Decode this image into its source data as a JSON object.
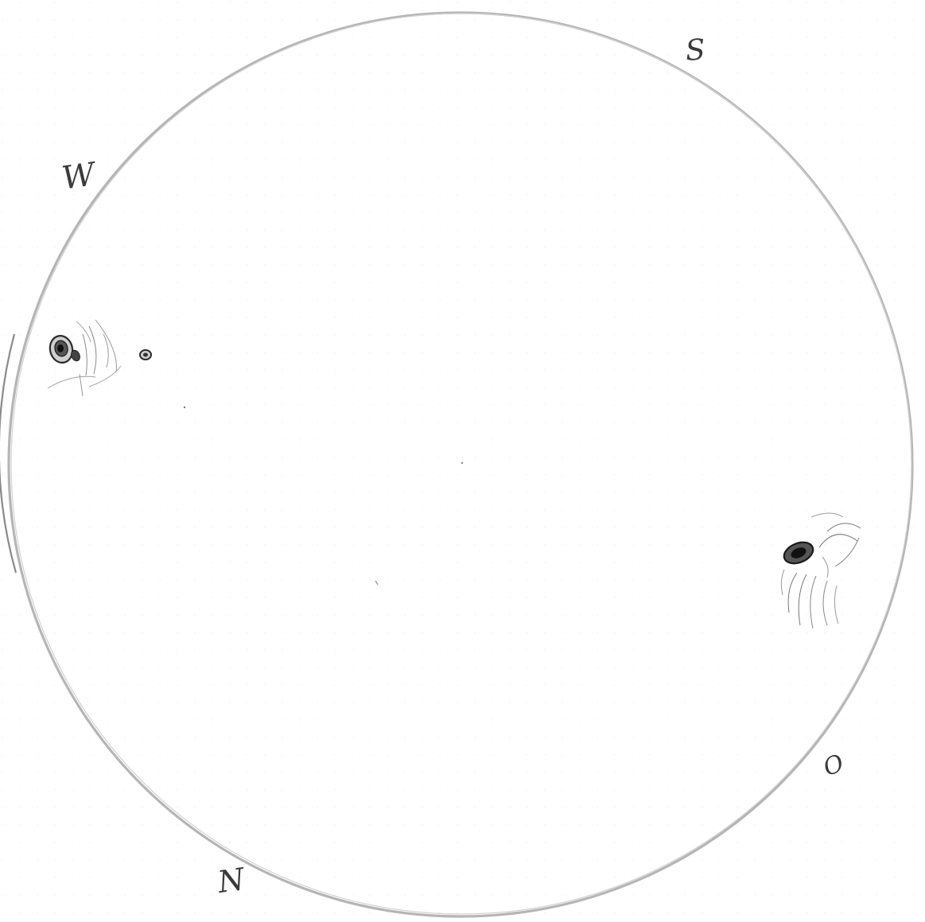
{
  "sheet": {
    "paper_color": "#ffffff",
    "pencil_color": "#9a9a9a",
    "ink_color": "#3a3a3a",
    "spot_color": "#1a1a1a"
  },
  "compass": {
    "west": "W",
    "south": "S",
    "east": "O",
    "north": "N"
  },
  "drawing_contents": [
    "solar-disk-outline",
    "sunspot-group-west",
    "small-sunspot-west",
    "sunspot-group-east",
    "faculae-strokes"
  ]
}
